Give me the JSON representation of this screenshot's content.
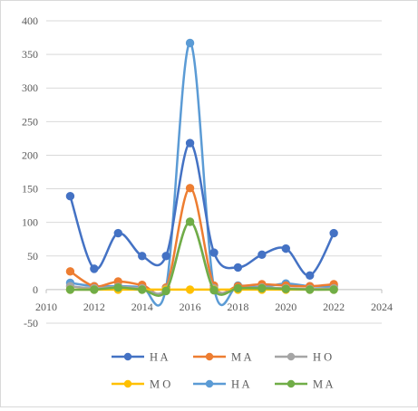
{
  "chart_data": {
    "type": "line",
    "title": "",
    "xlabel": "",
    "ylabel": "",
    "xlim": [
      2010,
      2024
    ],
    "ylim": [
      -50,
      400
    ],
    "x_ticks": [
      "2010",
      "2012",
      "2014",
      "2016",
      "2018",
      "2020",
      "2022",
      "2024"
    ],
    "y_ticks": [
      "400",
      "350",
      "300",
      "250",
      "200",
      "150",
      "100",
      "50",
      "0",
      "-50"
    ],
    "grid": "horizontal",
    "legend_position": "bottom",
    "smoothed": true,
    "x": [
      2011,
      2012,
      2013,
      2014,
      2015,
      2016,
      2017,
      2018,
      2019,
      2020,
      2021,
      2022
    ],
    "series": [
      {
        "name": "H A",
        "color": "#4472c4",
        "values": [
          139,
          31,
          84,
          50,
          50,
          218,
          55,
          33,
          52,
          61,
          21,
          84
        ]
      },
      {
        "name": "M A",
        "color": "#ed7d31",
        "values": [
          27,
          5,
          12,
          7,
          3,
          151,
          6,
          5,
          8,
          6,
          5,
          8
        ]
      },
      {
        "name": "H O",
        "color": "#a5a5a5",
        "values": [
          5,
          2,
          4,
          2,
          1,
          101,
          2,
          2,
          3,
          2,
          1,
          2
        ]
      },
      {
        "name": "M O",
        "color": "#ffc000",
        "values": [
          0,
          0,
          0,
          0,
          0,
          0,
          0,
          0,
          0,
          0,
          0,
          0
        ]
      },
      {
        "name": "H A",
        "color": "#5b9bd5",
        "values": [
          10,
          5,
          5,
          4,
          3,
          367,
          3,
          6,
          4,
          9,
          5,
          5
        ]
      },
      {
        "name": "M A",
        "color": "#70ad47",
        "values": [
          0,
          0,
          3,
          0,
          -2,
          101,
          -1,
          2,
          2,
          1,
          0,
          0
        ]
      }
    ]
  }
}
